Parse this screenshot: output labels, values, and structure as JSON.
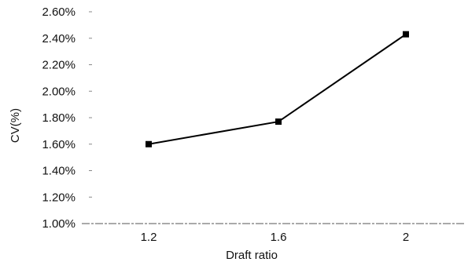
{
  "chart_data": {
    "type": "line",
    "title": "",
    "xlabel": "Draft ratio",
    "ylabel": "CV(%)",
    "categories": [
      "1.2",
      "1.6",
      "2"
    ],
    "series": [
      {
        "values": [
          1.6,
          1.77,
          2.43
        ],
        "marker": "square",
        "color": "#000000"
      }
    ],
    "ylim": [
      1.0,
      2.6
    ],
    "yticks": [
      1.0,
      1.2,
      1.4,
      1.6,
      1.8,
      2.0,
      2.2,
      2.4,
      2.6
    ],
    "ytick_labels": [
      "1.00%",
      "1.20%",
      "1.40%",
      "1.60%",
      "1.80%",
      "2.00%",
      "2.20%",
      "2.40%",
      "2.60%"
    ],
    "grid": false,
    "legend": "none"
  }
}
